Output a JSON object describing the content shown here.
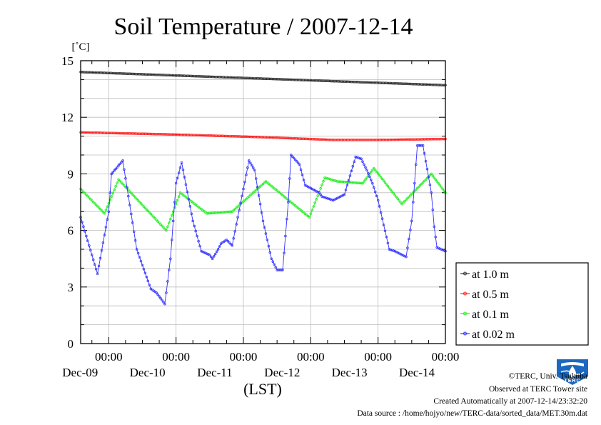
{
  "chart_data": {
    "type": "line",
    "title": "Soil Temperature / 2007-12-14",
    "ylabel": "[˚C]",
    "xlabel": "(LST)",
    "ylim": [
      0,
      15
    ],
    "yticks": [
      "0",
      "3",
      "6",
      "9",
      "12",
      "15"
    ],
    "xticks": [
      {
        "time": "00:00",
        "date": "Dec-09"
      },
      {
        "time": "00:00",
        "date": "Dec-10"
      },
      {
        "time": "00:00",
        "date": "Dec-11"
      },
      {
        "time": "00:00",
        "date": "Dec-12"
      },
      {
        "time": "00:00",
        "date": "Dec-13"
      },
      {
        "time": "00:00",
        "date": "Dec-14"
      }
    ],
    "x_unit": "hours from 2007-12-08 00:00",
    "xlim": [
      14,
      144
    ],
    "grid": true,
    "legend_position": "bottom-right",
    "series": [
      {
        "name": "at 1.0 m",
        "color": "#303030",
        "x": [
          14,
          144
        ],
        "y": [
          14.4,
          13.7
        ]
      },
      {
        "name": "at 0.5 m",
        "color": "#ff2020",
        "x": [
          14,
          44,
          78,
          104,
          120,
          144
        ],
        "y": [
          11.2,
          11.1,
          10.95,
          10.8,
          10.8,
          10.85
        ]
      },
      {
        "name": "at 0.1 m",
        "color": "#22ee22",
        "x": [
          14,
          22.5,
          27.5,
          44.5,
          49.5,
          59,
          68,
          80,
          95.5,
          101,
          105.5,
          114.5,
          118.5,
          128.5,
          139,
          144
        ],
        "y": [
          8.2,
          6.9,
          8.7,
          6.0,
          8.0,
          6.9,
          7.0,
          8.6,
          6.7,
          8.8,
          8.6,
          8.5,
          9.3,
          7.4,
          9.0,
          8.0
        ]
      },
      {
        "name": "at 0.02 m",
        "color": "#3030ff",
        "x": [
          14,
          19,
          20,
          24,
          25,
          29,
          34,
          39,
          41,
          44,
          46,
          48,
          50,
          54,
          57,
          60,
          61,
          63,
          64,
          66,
          68,
          74,
          76,
          79,
          82,
          84,
          86,
          88,
          89,
          92,
          94,
          99,
          100,
          104,
          108,
          112,
          114,
          116,
          118,
          120,
          124,
          126,
          130,
          132,
          134,
          136,
          139,
          140,
          141,
          144
        ],
        "y": [
          6.7,
          4.2,
          3.7,
          7.0,
          9.0,
          9.7,
          5.0,
          2.9,
          2.7,
          2.1,
          4.5,
          8.5,
          9.6,
          6.5,
          4.9,
          4.7,
          4.5,
          5.0,
          5.3,
          5.5,
          5.2,
          9.7,
          9.2,
          6.5,
          4.5,
          3.9,
          3.9,
          7.5,
          10.0,
          9.5,
          8.4,
          8.0,
          7.8,
          7.6,
          7.9,
          9.9,
          9.8,
          9.2,
          8.5,
          7.6,
          5.0,
          4.9,
          4.6,
          6.5,
          10.5,
          10.5,
          8.0,
          6.2,
          5.1,
          4.9
        ]
      }
    ]
  },
  "credits": [
    "©TERC, Univ. Tsukuba",
    "Observed at TERC Tower site",
    "Created Automatically at 2007-12-14/23:32:20",
    "Data source : /home/hojyo/new/TERC-data/sorted_data/MET.30m.dat"
  ],
  "logo_text": "TERC"
}
